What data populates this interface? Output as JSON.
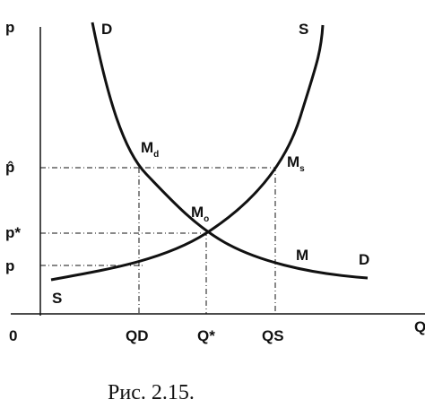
{
  "axes": {
    "y_label": "p",
    "x_label": "Q",
    "origin": "0"
  },
  "curves": {
    "demand_top": "D",
    "supply_top": "S",
    "demand_end": "D",
    "supply_start": "S"
  },
  "price_levels": {
    "p_hat": "p̂",
    "p_star": "p*",
    "p_low": "p"
  },
  "quantities": {
    "q_d": {
      "letter": "Q",
      "sub": "D"
    },
    "q_star": "Q*",
    "q_s": {
      "letter": "Q",
      "sub": "S"
    }
  },
  "points": {
    "m_d": {
      "letter": "M",
      "sub": "d"
    },
    "m_s": {
      "letter": "M",
      "sub": "s"
    },
    "m_o": {
      "letter": "M",
      "sub": "o"
    },
    "m": "M"
  },
  "caption": "Рис. 2.15."
}
